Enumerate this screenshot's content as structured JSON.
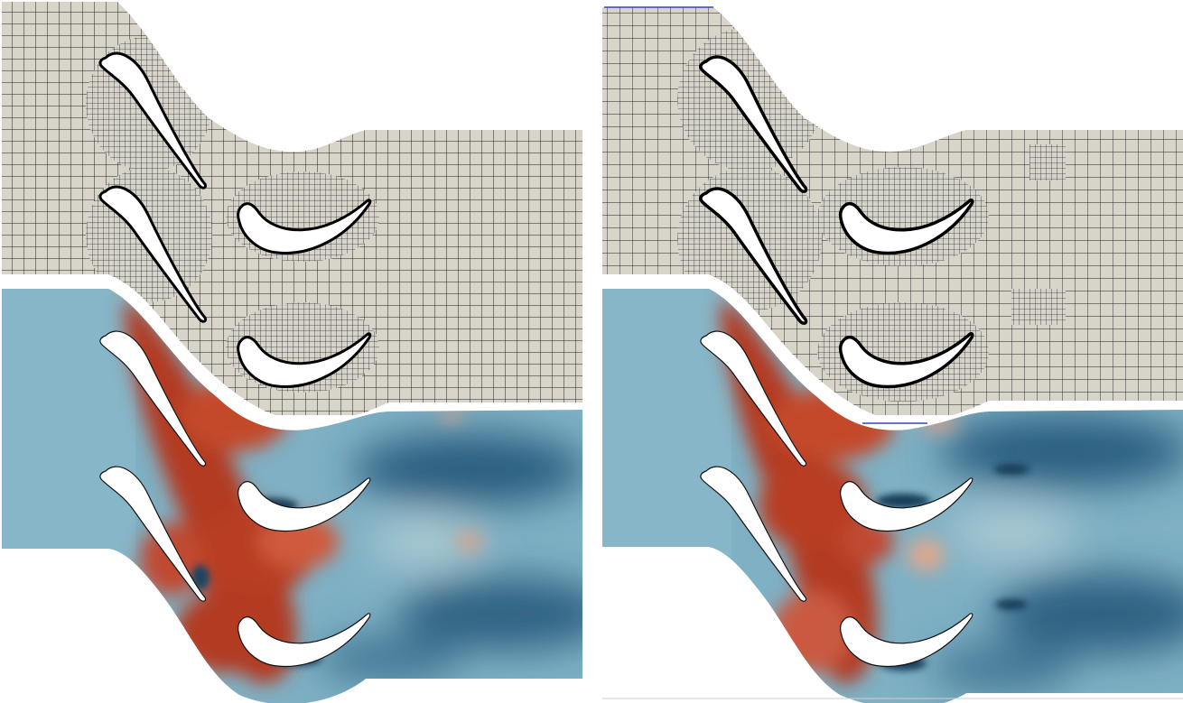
{
  "figure": {
    "panels": [
      {
        "id": "left",
        "mesh_style": "structured-quad",
        "refinement": "uniform"
      },
      {
        "id": "right",
        "mesh_style": "structured-quad",
        "refinement": "adaptive"
      }
    ],
    "colors": {
      "mesh_fill": "#d8d4ca",
      "mesh_line": "#1e1e1e",
      "field_low": "#1f4e6e",
      "field_mid": "#7fb0c4",
      "field_high": "#b23a22",
      "field_peak": "#cf5a3c",
      "blade": "#ffffff",
      "adaptive_marker": "#3344cc"
    }
  }
}
